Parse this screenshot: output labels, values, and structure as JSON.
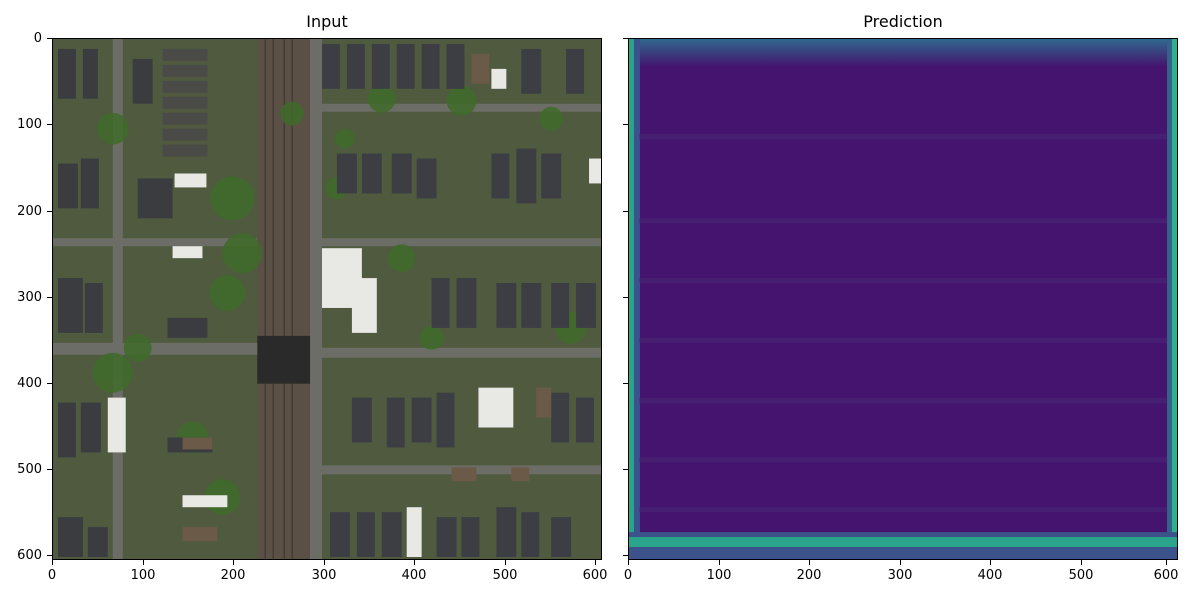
{
  "panels": [
    {
      "title": "Input"
    },
    {
      "title": "Prediction"
    }
  ],
  "axes": {
    "x_ticks": [
      "0",
      "100",
      "200",
      "300",
      "400",
      "500",
      "600"
    ],
    "y_ticks": [
      "0",
      "100",
      "200",
      "300",
      "400",
      "500",
      "600"
    ]
  },
  "colors": {
    "prediction_fill": "#44146e",
    "prediction_edge": "#2f6d8e",
    "prediction_border_bright": "#2fb28b"
  }
}
